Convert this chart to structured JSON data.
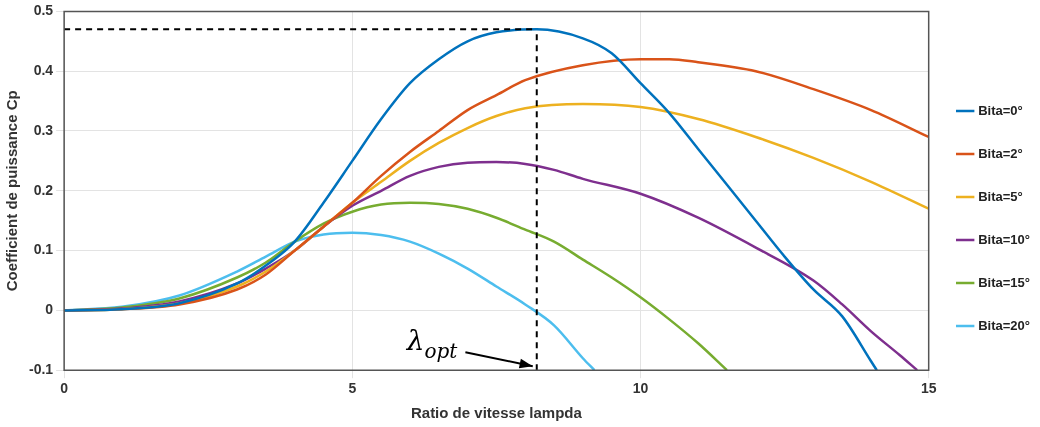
{
  "chart_data": {
    "type": "line",
    "xlabel": "Ratio de vitesse lampda",
    "ylabel": "Coefficient de puissance Cp",
    "xlim": [
      0,
      15
    ],
    "ylim": [
      -0.1,
      0.5
    ],
    "xticks": [
      0,
      5,
      10,
      15
    ],
    "yticks": [
      -0.1,
      0,
      0.1,
      0.2,
      0.3,
      0.4,
      0.5
    ],
    "grid": true,
    "legend": "right",
    "marker": "none",
    "line_style": "solid",
    "series": [
      {
        "name": "Bita=0°",
        "color": "#0072bd",
        "x": [
          0,
          1,
          2,
          3,
          3.5,
          4,
          4.5,
          5,
          5.5,
          6,
          6.5,
          7,
          7.5,
          8.2,
          9,
          9.5,
          10,
          10.5,
          11,
          11.5,
          12,
          12.5,
          13,
          13.5,
          14,
          14.1
        ],
        "values": [
          0,
          0.002,
          0.012,
          0.045,
          0.075,
          0.115,
          0.18,
          0.25,
          0.32,
          0.38,
          0.42,
          0.45,
          0.465,
          0.47,
          0.455,
          0.43,
          0.38,
          0.33,
          0.27,
          0.21,
          0.15,
          0.09,
          0.035,
          -0.01,
          -0.085,
          -0.1
        ]
      },
      {
        "name": "Bita=2°",
        "color": "#d95319",
        "x": [
          0,
          1,
          2,
          3,
          3.5,
          4,
          4.5,
          5,
          5.5,
          6,
          6.5,
          7,
          7.5,
          8,
          9,
          10,
          10.5,
          11,
          12,
          13,
          14,
          15
        ],
        "values": [
          0,
          0.002,
          0.01,
          0.035,
          0.06,
          0.1,
          0.14,
          0.18,
          0.225,
          0.265,
          0.3,
          0.335,
          0.36,
          0.385,
          0.41,
          0.42,
          0.42,
          0.415,
          0.4,
          0.37,
          0.335,
          0.29
        ]
      },
      {
        "name": "Bita=5°",
        "color": "#edb120",
        "x": [
          0,
          1,
          2,
          3,
          3.5,
          4,
          4.5,
          5,
          5.5,
          6,
          6.5,
          7,
          7.5,
          8,
          9,
          10,
          11,
          12,
          13,
          14,
          15
        ],
        "values": [
          0,
          0.002,
          0.012,
          0.04,
          0.065,
          0.1,
          0.14,
          0.18,
          0.215,
          0.25,
          0.28,
          0.305,
          0.325,
          0.338,
          0.345,
          0.34,
          0.32,
          0.29,
          0.255,
          0.215,
          0.17
        ]
      },
      {
        "name": "Bita=10°",
        "color": "#7e2f8e",
        "x": [
          0,
          1,
          2,
          3,
          3.5,
          4,
          4.5,
          5,
          5.5,
          6,
          6.5,
          7,
          7.5,
          8,
          8.5,
          9,
          10,
          11,
          12,
          13,
          13.5,
          14,
          14.5,
          14.8
        ],
        "values": [
          0,
          0.003,
          0.015,
          0.045,
          0.07,
          0.1,
          0.14,
          0.175,
          0.2,
          0.225,
          0.24,
          0.247,
          0.248,
          0.245,
          0.235,
          0.22,
          0.195,
          0.155,
          0.105,
          0.05,
          0.01,
          -0.035,
          -0.075,
          -0.1
        ]
      },
      {
        "name": "Bita=15°",
        "color": "#77ac30",
        "x": [
          0,
          1,
          2,
          3,
          3.5,
          4,
          4.5,
          5,
          5.5,
          6,
          6.5,
          7,
          7.5,
          8,
          8.5,
          9,
          9.5,
          10,
          10.5,
          11,
          11.5
        ],
        "values": [
          0,
          0.005,
          0.02,
          0.055,
          0.08,
          0.115,
          0.145,
          0.165,
          0.177,
          0.18,
          0.178,
          0.17,
          0.155,
          0.135,
          0.115,
          0.085,
          0.055,
          0.022,
          -0.015,
          -0.055,
          -0.1
        ]
      },
      {
        "name": "Bita=20°",
        "color": "#4dbeee",
        "x": [
          0,
          1,
          2,
          3,
          3.5,
          4,
          4.5,
          5,
          5.5,
          6,
          6.5,
          7,
          7.5,
          8,
          8.5,
          9,
          9.2
        ],
        "values": [
          0,
          0.006,
          0.025,
          0.065,
          0.09,
          0.115,
          0.127,
          0.13,
          0.126,
          0.115,
          0.095,
          0.07,
          0.04,
          0.01,
          -0.025,
          -0.08,
          -0.1
        ]
      }
    ],
    "ref_lines": [
      {
        "axis": "y",
        "value": 0.47,
        "color": "#000000",
        "line_style": "dashed"
      },
      {
        "axis": "x",
        "value": 8.2,
        "color": "#000000",
        "line_style": "dashed"
      }
    ],
    "annotations": [
      {
        "text": "λ$_{opt}$",
        "x": 8.2,
        "y": -0.1
      }
    ]
  }
}
